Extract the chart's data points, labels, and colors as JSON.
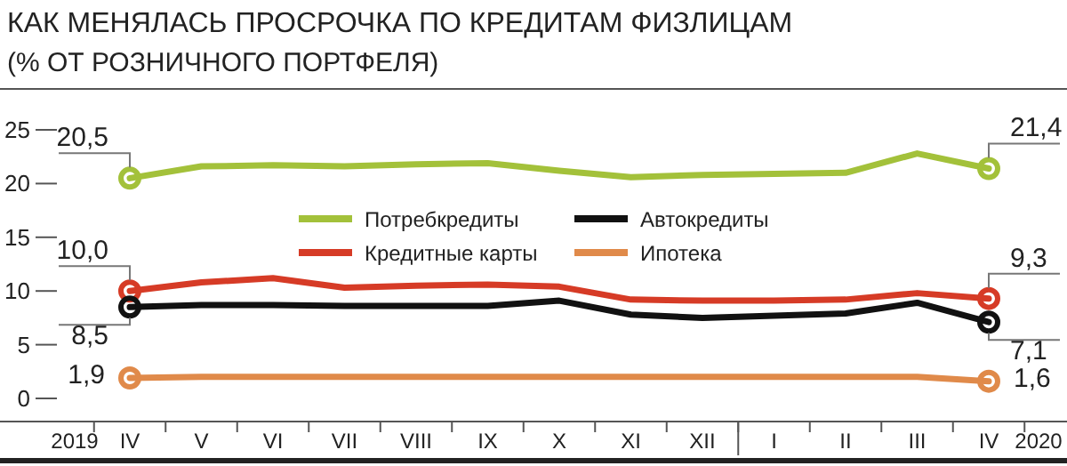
{
  "chart_data": {
    "type": "line",
    "title": "КАК МЕНЯЛАСЬ ПРОСРОЧКА ПО КРЕДИТАМ ФИЗЛИЦАМ",
    "subtitle": "(% ОТ РОЗНИЧНОГО ПОРТФЕЛЯ)",
    "categories": [
      "IV",
      "V",
      "VI",
      "VII",
      "VIII",
      "IX",
      "X",
      "XI",
      "XII",
      "I",
      "II",
      "III",
      "IV"
    ],
    "annotations": [
      "2019",
      "2020"
    ],
    "ylim": [
      0,
      25
    ],
    "yticks": [
      0,
      5,
      10,
      15,
      20,
      25
    ],
    "grid": false,
    "legend": "center",
    "series": [
      {
        "name": "Потребкредиты",
        "color": "#a3c13a",
        "values": [
          20.5,
          21.6,
          21.7,
          21.6,
          21.8,
          21.9,
          21.2,
          20.6,
          20.8,
          20.9,
          21.0,
          22.8,
          21.4
        ],
        "value_labels": [
          "20,5",
          null,
          null,
          null,
          null,
          null,
          null,
          null,
          null,
          null,
          null,
          null,
          "21,4"
        ]
      },
      {
        "name": "Кредитные карты",
        "color": "#d63b26",
        "values": [
          10.0,
          10.8,
          11.2,
          10.3,
          10.5,
          10.6,
          10.4,
          9.2,
          9.1,
          9.1,
          9.2,
          9.8,
          9.3
        ],
        "value_labels": [
          "10,0",
          null,
          null,
          null,
          null,
          null,
          null,
          null,
          null,
          null,
          null,
          null,
          "9,3"
        ]
      },
      {
        "name": "Автокредиты",
        "color": "#111111",
        "values": [
          8.5,
          8.7,
          8.7,
          8.6,
          8.6,
          8.6,
          9.1,
          7.8,
          7.5,
          7.7,
          7.9,
          8.9,
          7.1
        ],
        "value_labels": [
          "8,5",
          null,
          null,
          null,
          null,
          null,
          null,
          null,
          null,
          null,
          null,
          null,
          "7,1"
        ]
      },
      {
        "name": "Ипотека",
        "color": "#e08a4a",
        "values": [
          1.9,
          2.0,
          2.0,
          2.0,
          2.0,
          2.0,
          2.0,
          2.0,
          2.0,
          2.0,
          2.0,
          2.0,
          1.6
        ],
        "value_labels": [
          "1,9",
          null,
          null,
          null,
          null,
          null,
          null,
          null,
          null,
          null,
          null,
          null,
          "1,6"
        ]
      }
    ]
  }
}
